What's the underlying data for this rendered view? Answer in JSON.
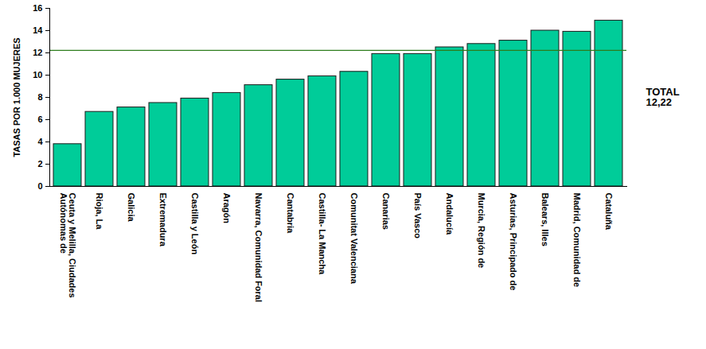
{
  "chart_data": {
    "type": "bar",
    "categories": [
      "Ceuta y Melilla, Ciudades Autónomas de",
      "Rioja, La",
      "Galicia",
      "Extremadura",
      "Castilla y León",
      "Aragón",
      "Navarra, Comunidad Foral",
      "Cantabria",
      "Castilla- La Mancha",
      "Comunitat Valenciana",
      "Canarias",
      "País Vasco",
      "Andalucía",
      "Murcia, Región de",
      "Asturias, Principado de",
      "Balears, Illes",
      "Madrid, Comunidad de",
      "Cataluña"
    ],
    "values": [
      3.8,
      6.7,
      7.1,
      7.5,
      7.9,
      8.4,
      9.1,
      9.6,
      9.9,
      10.3,
      11.9,
      11.9,
      12.5,
      12.8,
      13.1,
      14.0,
      13.9,
      14.9
    ],
    "color": "#00cc99",
    "y_label": "TASAS POR 1.000 MUJERES",
    "ylim": [
      0,
      16
    ],
    "yticks": [
      0,
      2,
      4,
      6,
      8,
      10,
      12,
      14,
      16
    ],
    "reference_line": {
      "value": 12.22,
      "label": "TOTAL 12,22",
      "color": "#2e7d1e"
    },
    "grid": false
  }
}
